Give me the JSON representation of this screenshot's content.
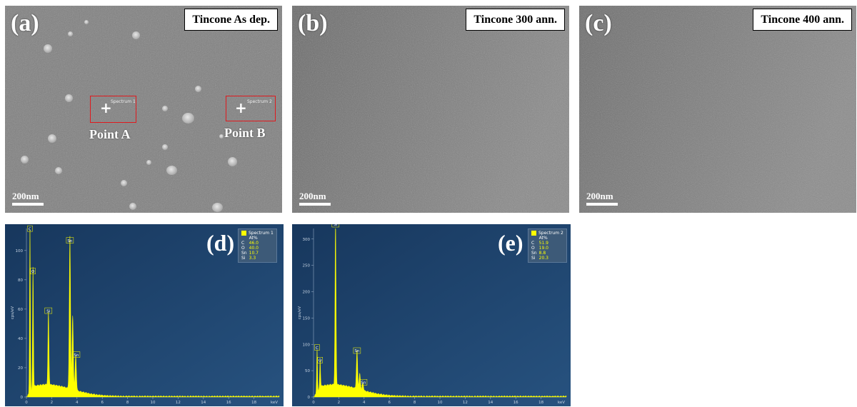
{
  "sem_panels": [
    {
      "letter": "(a)",
      "title": "Tincone As dep.",
      "scale": "200nm"
    },
    {
      "letter": "(b)",
      "title": "Tincone 300 ann.",
      "scale": "200nm"
    },
    {
      "letter": "(c)",
      "title": "Tincone 400 ann.",
      "scale": "200nm"
    }
  ],
  "points": {
    "a": {
      "label": "Point A",
      "tag": "Spectrum 1"
    },
    "b": {
      "label": "Point B",
      "tag": "Spectrum 2"
    }
  },
  "spectra": [
    {
      "letter": "(d)",
      "legend_name": "Spectrum 1",
      "unit_header": "At%",
      "composition": [
        [
          "C",
          "46.0"
        ],
        [
          "O",
          "40.0"
        ],
        [
          "Sn",
          "10.7"
        ],
        [
          "Si",
          "3.3"
        ]
      ],
      "ylabel": "cps/eV",
      "yticks": [
        "0",
        "20",
        "40",
        "60",
        "80",
        "100"
      ],
      "ymax": 115,
      "peaks": [
        {
          "el": "C",
          "kev": 0.28,
          "h": 112
        },
        {
          "el": "O",
          "kev": 0.52,
          "h": 83
        },
        {
          "el": "Si",
          "kev": 1.74,
          "h": 50
        },
        {
          "el": "Sn",
          "kev": 3.44,
          "h": 104
        },
        {
          "el": "Sn",
          "kev": 3.66,
          "h": 50
        },
        {
          "el": "Sn",
          "kev": 3.9,
          "h": 24
        }
      ],
      "labelled_peaks": [
        [
          "C",
          0.28,
          112
        ],
        [
          "O",
          0.52,
          83
        ],
        [
          "Si",
          1.74,
          56
        ],
        [
          "Sn",
          3.44,
          104
        ],
        [
          "Sn",
          3.95,
          26
        ]
      ]
    },
    {
      "letter": "(e)",
      "legend_name": "Spectrum 2",
      "unit_header": "At%",
      "composition": [
        [
          "C",
          "51.9"
        ],
        [
          "O",
          "19.0"
        ],
        [
          "Sn",
          "8.8"
        ],
        [
          "Si",
          "20.3"
        ]
      ],
      "ylabel": "cps/eV",
      "yticks": [
        "0",
        "50",
        "100",
        "150",
        "200",
        "250",
        "300"
      ],
      "ymax": 320,
      "peaks": [
        {
          "el": "C",
          "kev": 0.28,
          "h": 80
        },
        {
          "el": "O",
          "kev": 0.52,
          "h": 52
        },
        {
          "el": "Si",
          "kev": 1.74,
          "h": 320
        },
        {
          "el": "Sn",
          "kev": 3.44,
          "h": 72
        },
        {
          "el": "Sn",
          "kev": 3.66,
          "h": 30
        },
        {
          "el": "Sn",
          "kev": 3.9,
          "h": 14
        }
      ],
      "labelled_peaks": [
        [
          "C",
          0.28,
          86
        ],
        [
          "O",
          0.52,
          62
        ],
        [
          "Si",
          1.74,
          320
        ],
        [
          "Sn",
          3.44,
          80
        ],
        [
          "Sn",
          3.95,
          20
        ]
      ]
    }
  ],
  "x_axis": {
    "ticks": [
      "0",
      "2",
      "4",
      "6",
      "8",
      "10",
      "12",
      "14",
      "16",
      "18"
    ],
    "unit": "keV",
    "max": 20
  },
  "colors": {
    "eds_bg_top": "#17375d",
    "eds_bg_bottom": "#27527f",
    "peak": "#ffff00",
    "box": "#e0191d"
  }
}
